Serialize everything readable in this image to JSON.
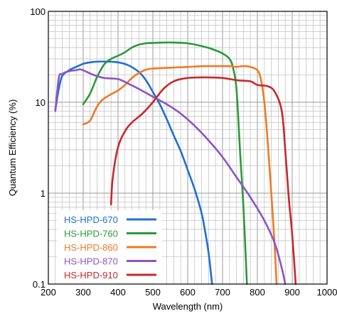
{
  "chart_data": {
    "type": "line",
    "xlabel": "Wavelength (nm)",
    "ylabel": "Quantum Efficiency (%)",
    "xlim": [
      200,
      1000
    ],
    "ylim": [
      0.1,
      100
    ],
    "yscale": "log",
    "grid": true,
    "legend_position": "bottom-left",
    "x_ticks": [
      "200",
      "300",
      "400",
      "500",
      "600",
      "700",
      "800",
      "900",
      "1000"
    ],
    "y_ticks": [
      "0.1",
      "1",
      "10",
      "100"
    ],
    "series": [
      {
        "name": "HS-HPD-670",
        "color": "#1e6fd9",
        "points": [
          [
            220,
            8.2
          ],
          [
            230,
            14
          ],
          [
            240,
            19.5
          ],
          [
            260,
            22.5
          ],
          [
            280,
            24.5
          ],
          [
            300,
            26.5
          ],
          [
            320,
            27.5
          ],
          [
            340,
            28
          ],
          [
            370,
            28
          ],
          [
            400,
            27.5
          ],
          [
            430,
            25.5
          ],
          [
            460,
            21.5
          ],
          [
            480,
            17.5
          ],
          [
            500,
            13
          ],
          [
            520,
            9.5
          ],
          [
            540,
            6.5
          ],
          [
            560,
            4.3
          ],
          [
            580,
            2.9
          ],
          [
            600,
            1.8
          ],
          [
            620,
            1.1
          ],
          [
            640,
            0.6
          ],
          [
            650,
            0.38
          ],
          [
            660,
            0.22
          ],
          [
            670,
            0.1
          ]
        ]
      },
      {
        "name": "HS-HPD-760",
        "color": "#2a9a3a",
        "points": [
          [
            300,
            9.5
          ],
          [
            320,
            12.5
          ],
          [
            340,
            19
          ],
          [
            360,
            26
          ],
          [
            380,
            30
          ],
          [
            400,
            32.5
          ],
          [
            420,
            35.5
          ],
          [
            440,
            40
          ],
          [
            460,
            43
          ],
          [
            480,
            44.5
          ],
          [
            500,
            45
          ],
          [
            550,
            45.5
          ],
          [
            600,
            44.5
          ],
          [
            640,
            41.5
          ],
          [
            670,
            38.5
          ],
          [
            700,
            34.5
          ],
          [
            720,
            30
          ],
          [
            730,
            24
          ],
          [
            740,
            14
          ],
          [
            750,
            3
          ],
          [
            760,
            0.7
          ],
          [
            770,
            0.1
          ]
        ]
      },
      {
        "name": "HS-HPD-860",
        "color": "#ef7a25",
        "points": [
          [
            300,
            5.7
          ],
          [
            320,
            6.3
          ],
          [
            340,
            9
          ],
          [
            360,
            11
          ],
          [
            400,
            13.5
          ],
          [
            420,
            15.5
          ],
          [
            440,
            18.5
          ],
          [
            460,
            21
          ],
          [
            480,
            22.8
          ],
          [
            500,
            23.5
          ],
          [
            550,
            24
          ],
          [
            600,
            24.5
          ],
          [
            650,
            25
          ],
          [
            700,
            25
          ],
          [
            720,
            25
          ],
          [
            740,
            24.5
          ],
          [
            760,
            25
          ],
          [
            780,
            24.5
          ],
          [
            800,
            22.5
          ],
          [
            810,
            18
          ],
          [
            820,
            10
          ],
          [
            830,
            3.5
          ],
          [
            840,
            1
          ],
          [
            850,
            0.25
          ],
          [
            855,
            0.1
          ]
        ]
      },
      {
        "name": "HS-HPD-870",
        "color": "#8b55c4",
        "points": [
          [
            220,
            8
          ],
          [
            230,
            18.5
          ],
          [
            240,
            20.5
          ],
          [
            260,
            22
          ],
          [
            280,
            22.5
          ],
          [
            290,
            23
          ],
          [
            300,
            22.5
          ],
          [
            330,
            20
          ],
          [
            360,
            18.5
          ],
          [
            400,
            18
          ],
          [
            430,
            16
          ],
          [
            460,
            14
          ],
          [
            500,
            11.5
          ],
          [
            540,
            9.5
          ],
          [
            580,
            7.5
          ],
          [
            620,
            5.5
          ],
          [
            660,
            3.8
          ],
          [
            700,
            2.5
          ],
          [
            740,
            1.5
          ],
          [
            780,
            0.9
          ],
          [
            820,
            0.5
          ],
          [
            850,
            0.28
          ],
          [
            870,
            0.15
          ],
          [
            880,
            0.1
          ]
        ]
      },
      {
        "name": "HS-HPD-910",
        "color": "#c8282c",
        "points": [
          [
            380,
            0.75
          ],
          [
            385,
            1.5
          ],
          [
            400,
            3.2
          ],
          [
            420,
            4.8
          ],
          [
            440,
            6
          ],
          [
            470,
            7.5
          ],
          [
            500,
            10
          ],
          [
            530,
            14
          ],
          [
            560,
            17
          ],
          [
            600,
            18.5
          ],
          [
            650,
            18.8
          ],
          [
            700,
            18.5
          ],
          [
            740,
            17.5
          ],
          [
            780,
            17
          ],
          [
            800,
            15.5
          ],
          [
            830,
            15
          ],
          [
            850,
            13
          ],
          [
            870,
            8
          ],
          [
            880,
            3
          ],
          [
            890,
            0.9
          ],
          [
            900,
            0.35
          ],
          [
            910,
            0.1
          ]
        ]
      }
    ]
  }
}
